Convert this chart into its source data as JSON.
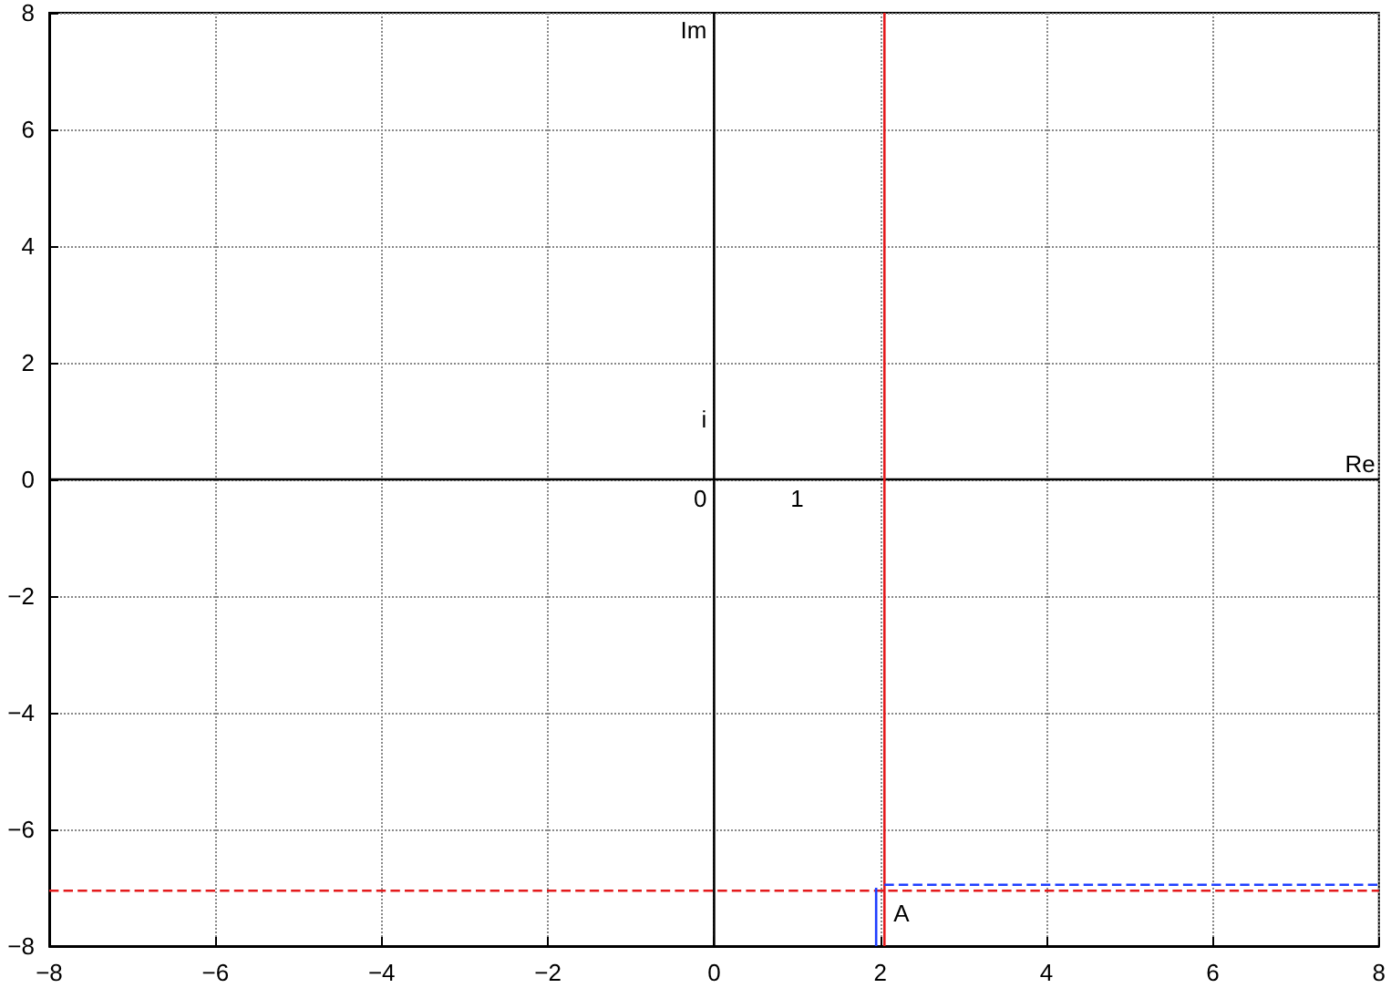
{
  "chart_data": {
    "type": "line",
    "series": [
      {
        "color": "#000000",
        "x": [
          0,
          0
        ],
        "values": [
          -8,
          8
        ],
        "line_style": "solid"
      },
      {
        "color": "#000000",
        "x": [
          -8,
          8
        ],
        "values": [
          0,
          0
        ],
        "line_style": "solid"
      },
      {
        "color": "#e41a1c",
        "x": [
          2.05,
          2.05
        ],
        "values": [
          -8,
          8
        ],
        "line_style": "solid"
      },
      {
        "color": "#e41a1c",
        "x": [
          -8,
          8
        ],
        "values": [
          -7.05,
          -7.05
        ],
        "line_style": "dashed"
      },
      {
        "color": "#1f3fff",
        "x": [
          1.95,
          1.95
        ],
        "values": [
          -8,
          -7.0
        ],
        "line_style": "solid"
      },
      {
        "color": "#1f3fff",
        "x": [
          2.05,
          8
        ],
        "values": [
          -6.95,
          -6.95
        ],
        "line_style": "dashed"
      }
    ],
    "xlim": [
      -8,
      8
    ],
    "ylim": [
      -8,
      8
    ],
    "xticks": [
      {
        "value": -8,
        "label": "−8"
      },
      {
        "value": -6,
        "label": "−6"
      },
      {
        "value": -4,
        "label": "−4"
      },
      {
        "value": -2,
        "label": "−2"
      },
      0,
      2,
      4,
      6,
      8
    ],
    "yticks": [
      {
        "value": -8,
        "label": "−8"
      },
      {
        "value": -6,
        "label": "−6"
      },
      {
        "value": -4,
        "label": "−4"
      },
      {
        "value": -2,
        "label": "−2"
      },
      0,
      2,
      4,
      6,
      8
    ],
    "annotations": [
      {
        "text": "Im",
        "x": 0,
        "y": 8
      },
      {
        "text": "Re",
        "x": 8,
        "y": 0
      },
      {
        "text": "i",
        "x": 0,
        "y": 1
      },
      {
        "text": "0",
        "x": 0,
        "y": 0
      },
      {
        "text": "1",
        "x": 1,
        "y": 0
      },
      {
        "text": "A",
        "x": 2.05,
        "y": -7.05
      }
    ],
    "grid": true,
    "marker": "none"
  }
}
